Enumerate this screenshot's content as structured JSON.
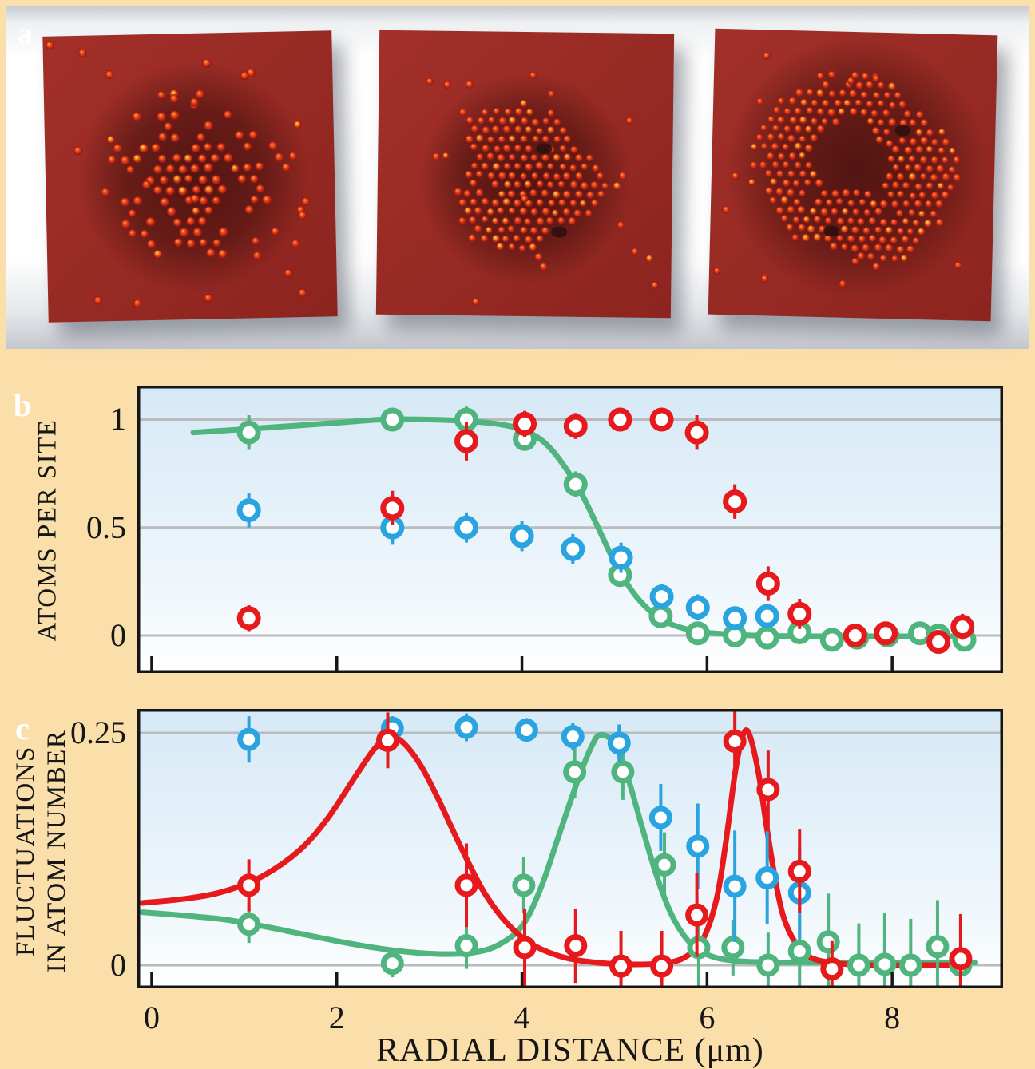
{
  "panels": {
    "a": "a",
    "b": "b",
    "c": "c"
  },
  "colors": {
    "green": "#4fb47e",
    "blue": "#2aa4e1",
    "red": "#e6191c",
    "grid": "#b9bbbd",
    "frame": "#161616",
    "plot_top": "#d6e9f6",
    "plot_bottom": "#ffffff",
    "label_box": "#bf6b35",
    "page_bg": "#fadfab",
    "photo_surface": "#9a2a27"
  },
  "panel_a": {
    "label": "a",
    "images": [
      {
        "name": "dilute-scattered-cluster",
        "seed": 7
      },
      {
        "name": "dense-filled-disc",
        "seed": 11
      },
      {
        "name": "ring-with-hole",
        "seed": 23
      }
    ]
  },
  "chart_data": [
    {
      "id": "b",
      "type": "scatter",
      "ylabel": "ATOMS PER SITE",
      "xlabel": "",
      "xlim": [
        -0.155,
        9.198
      ],
      "ylim": [
        -0.174,
        1.157
      ],
      "grid": true,
      "yticks": [
        {
          "v": 1,
          "label": "1"
        },
        {
          "v": 0.5,
          "label": "0.5"
        },
        {
          "v": 0,
          "label": "0"
        }
      ],
      "xticks": [
        {
          "v": 0,
          "label": ""
        },
        {
          "v": 2,
          "label": ""
        },
        {
          "v": 4,
          "label": ""
        },
        {
          "v": 6,
          "label": ""
        },
        {
          "v": 8,
          "label": ""
        }
      ],
      "series": [
        {
          "name": "green-circles",
          "color": "green",
          "x": [
            1.05,
            2.6,
            3.4,
            4.03,
            4.58,
            5.06,
            5.5,
            5.9,
            6.3,
            6.65,
            7.0,
            7.35,
            7.62,
            7.95,
            8.3,
            8.5,
            8.78
          ],
          "y": [
            0.94,
            1.0,
            1.0,
            0.91,
            0.7,
            0.28,
            0.09,
            0.01,
            0.0,
            -0.01,
            0.015,
            -0.02,
            -0.01,
            0.0,
            0.01,
            0.0,
            -0.02
          ],
          "err": [
            0.08,
            0.05,
            0.06,
            0.05,
            0.06,
            0.05,
            0.05,
            0.05,
            0.04,
            0.04,
            0.04,
            0.04,
            0.04,
            0.04,
            0.04,
            0.04,
            0.05
          ],
          "curve": [
            [
              0.45,
              0.94
            ],
            [
              1.0,
              0.955
            ],
            [
              1.5,
              0.97
            ],
            [
              2.0,
              0.985
            ],
            [
              2.5,
              1.0
            ],
            [
              3.0,
              1.0
            ],
            [
              3.5,
              0.99
            ],
            [
              3.8,
              0.975
            ],
            [
              4.05,
              0.945
            ],
            [
              4.3,
              0.87
            ],
            [
              4.6,
              0.69
            ],
            [
              4.8,
              0.52
            ],
            [
              5.0,
              0.34
            ],
            [
              5.2,
              0.2
            ],
            [
              5.4,
              0.108
            ],
            [
              5.6,
              0.055
            ],
            [
              5.8,
              0.027
            ],
            [
              6.0,
              0.013
            ],
            [
              6.3,
              0.004
            ],
            [
              6.6,
              -0.002
            ],
            [
              7.2,
              -0.004
            ],
            [
              8.0,
              -0.004
            ],
            [
              8.85,
              -0.004
            ]
          ]
        },
        {
          "name": "blue-circles",
          "color": "blue",
          "x": [
            1.05,
            2.6,
            3.4,
            4.0,
            4.55,
            5.07,
            5.51,
            5.9,
            6.3,
            6.65
          ],
          "y": [
            0.58,
            0.5,
            0.5,
            0.46,
            0.4,
            0.36,
            0.18,
            0.13,
            0.08,
            0.09
          ],
          "err": [
            0.08,
            0.08,
            0.07,
            0.07,
            0.07,
            0.07,
            0.06,
            0.06,
            0.05,
            0.05
          ]
        },
        {
          "name": "red-circles",
          "color": "red",
          "x": [
            1.05,
            2.6,
            3.4,
            4.03,
            4.58,
            5.06,
            5.51,
            5.89,
            6.3,
            6.66,
            7.0,
            7.6,
            7.93,
            8.5,
            8.76
          ],
          "y": [
            0.08,
            0.59,
            0.9,
            0.98,
            0.97,
            1.0,
            1.0,
            0.94,
            0.62,
            0.24,
            0.1,
            0.0,
            0.01,
            -0.03,
            0.04
          ],
          "err": [
            0.06,
            0.08,
            0.09,
            0.06,
            0.06,
            0.04,
            0.04,
            0.08,
            0.08,
            0.08,
            0.07,
            0.05,
            0.05,
            0.05,
            0.06
          ]
        }
      ]
    },
    {
      "id": "c",
      "type": "scatter",
      "ylabel": "FLUCTUATIONS IN ATOM NUMBER",
      "ylabel_line1": "FLUCTUATIONS",
      "ylabel_line2": "IN ATOM NUMBER",
      "xlabel": "RADIAL DISTANCE (μm)",
      "xlim": [
        -0.155,
        9.198
      ],
      "ylim": [
        -0.0249,
        0.2758
      ],
      "grid": true,
      "yticks": [
        {
          "v": 0.25,
          "label": "0.25"
        },
        {
          "v": 0,
          "label": "0"
        }
      ],
      "xticks": [
        {
          "v": 0,
          "label": "0"
        },
        {
          "v": 2,
          "label": "2"
        },
        {
          "v": 4,
          "label": "4"
        },
        {
          "v": 6,
          "label": "6"
        },
        {
          "v": 8,
          "label": "8"
        }
      ],
      "series": [
        {
          "name": "green-circles",
          "color": "green",
          "x": [
            1.05,
            2.6,
            3.4,
            4.02,
            4.57,
            5.09,
            5.54,
            5.91,
            6.28,
            6.66,
            7.0,
            7.31,
            7.64,
            7.92,
            8.2,
            8.49,
            8.74
          ],
          "y": [
            0.044,
            0.002,
            0.021,
            0.086,
            0.208,
            0.208,
            0.108,
            0.019,
            0.019,
            0.0,
            0.015,
            0.025,
            0.0,
            0.001,
            0.0,
            0.02,
            0.0
          ],
          "err": [
            0.02,
            0.015,
            0.025,
            0.03,
            0.028,
            0.03,
            0.035,
            0.045,
            0.03,
            0.035,
            0.04,
            0.052,
            0.045,
            0.055,
            0.05,
            0.05,
            0.055
          ],
          "curve": [
            [
              -0.1,
              0.057
            ],
            [
              0.4,
              0.053
            ],
            [
              0.8,
              0.049
            ],
            [
              1.2,
              0.042
            ],
            [
              1.6,
              0.034
            ],
            [
              2.0,
              0.026
            ],
            [
              2.4,
              0.019
            ],
            [
              2.8,
              0.014
            ],
            [
              3.2,
              0.012
            ],
            [
              3.5,
              0.014
            ],
            [
              3.75,
              0.022
            ],
            [
              4.0,
              0.042
            ],
            [
              4.2,
              0.082
            ],
            [
              4.4,
              0.14
            ],
            [
              4.6,
              0.198
            ],
            [
              4.75,
              0.235
            ],
            [
              4.85,
              0.248
            ],
            [
              5.0,
              0.238
            ],
            [
              5.15,
              0.2
            ],
            [
              5.3,
              0.148
            ],
            [
              5.45,
              0.098
            ],
            [
              5.6,
              0.058
            ],
            [
              5.75,
              0.032
            ],
            [
              5.9,
              0.017
            ],
            [
              6.1,
              0.008
            ],
            [
              6.4,
              0.004
            ],
            [
              6.8,
              0.003
            ],
            [
              7.4,
              0.003
            ],
            [
              8.0,
              0.003
            ],
            [
              8.9,
              0.003
            ]
          ]
        },
        {
          "name": "blue-circles",
          "color": "blue",
          "x": [
            1.05,
            2.6,
            3.4,
            4.05,
            4.55,
            5.05,
            5.5,
            5.9,
            6.3,
            6.65,
            7.0
          ],
          "y": [
            0.243,
            0.255,
            0.256,
            0.253,
            0.246,
            0.239,
            0.159,
            0.128,
            0.085,
            0.094,
            0.078
          ],
          "err": [
            0.025,
            0.013,
            0.015,
            0.013,
            0.015,
            0.02,
            0.036,
            0.046,
            0.06,
            0.05,
            0.05
          ]
        },
        {
          "name": "red-circles",
          "color": "red",
          "x": [
            1.05,
            2.55,
            3.4,
            4.03,
            4.58,
            5.07,
            5.51,
            5.89,
            6.3,
            6.66,
            7.0,
            7.35,
            8.74
          ],
          "y": [
            0.086,
            0.242,
            0.086,
            0.019,
            0.021,
            -0.001,
            -0.001,
            0.054,
            0.241,
            0.189,
            0.101,
            -0.004,
            0.007
          ],
          "err": [
            0.028,
            0.03,
            0.045,
            0.042,
            0.04,
            0.038,
            0.038,
            0.045,
            0.045,
            0.042,
            0.045,
            0.03,
            0.048
          ],
          "curve": [
            [
              -0.1,
              0.067
            ],
            [
              0.4,
              0.072
            ],
            [
              0.8,
              0.08
            ],
            [
              1.2,
              0.096
            ],
            [
              1.6,
              0.124
            ],
            [
              1.9,
              0.158
            ],
            [
              2.2,
              0.203
            ],
            [
              2.4,
              0.232
            ],
            [
              2.55,
              0.245
            ],
            [
              2.7,
              0.241
            ],
            [
              2.9,
              0.216
            ],
            [
              3.1,
              0.178
            ],
            [
              3.35,
              0.125
            ],
            [
              3.6,
              0.077
            ],
            [
              3.85,
              0.044
            ],
            [
              4.1,
              0.023
            ],
            [
              4.4,
              0.01
            ],
            [
              4.7,
              0.004
            ],
            [
              5.1,
              0.001
            ],
            [
              5.5,
              0.002
            ],
            [
              5.75,
              0.008
            ],
            [
              5.95,
              0.027
            ],
            [
              6.1,
              0.07
            ],
            [
              6.2,
              0.13
            ],
            [
              6.3,
              0.205
            ],
            [
              6.38,
              0.245
            ],
            [
              6.45,
              0.25
            ],
            [
              6.55,
              0.21
            ],
            [
              6.65,
              0.145
            ],
            [
              6.75,
              0.085
            ],
            [
              6.85,
              0.045
            ],
            [
              7.0,
              0.018
            ],
            [
              7.15,
              0.007
            ],
            [
              7.4,
              0.002
            ],
            [
              7.8,
              0.0
            ],
            [
              8.3,
              0.0
            ],
            [
              8.8,
              0.0
            ]
          ]
        }
      ]
    }
  ]
}
